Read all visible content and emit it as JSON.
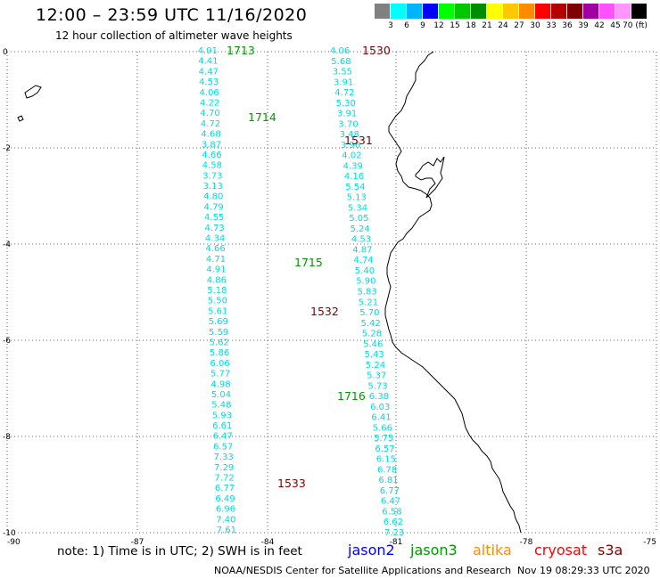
{
  "header": {
    "title": "12:00 – 23:59 UTC 11/16/2020",
    "subtitle": "12 hour collection of altimeter wave heights"
  },
  "scale": {
    "colors": [
      "#808080",
      "#00ffff",
      "#00b4ff",
      "#0000ff",
      "#00ff00",
      "#00c800",
      "#008c00",
      "#ffff00",
      "#ffc800",
      "#ff8c00",
      "#ff0000",
      "#b40000",
      "#800000",
      "#a000a0",
      "#ff50ff",
      "#ff96ff",
      "#000000"
    ],
    "labels": [
      "3",
      "6",
      "9",
      "12",
      "15",
      "18",
      "21",
      "24",
      "27",
      "30",
      "33",
      "36",
      "39",
      "42",
      "45",
      "70 (ft)"
    ]
  },
  "map": {
    "lon_range": [
      -90,
      -75
    ],
    "lat_range": [
      -10,
      0
    ],
    "x_ticks": [
      "-90",
      "-87",
      "-84",
      "-81",
      "-78",
      "-75"
    ],
    "y_ticks": [
      "0",
      "-2",
      "-4",
      "-6",
      "-8",
      "-10"
    ],
    "grid": true,
    "track_color": "#00dcdc",
    "jason3_color": "#009900",
    "s3a_color": "#800000",
    "track_a_values": [
      "4.91",
      "4.41",
      "4.47",
      "4.53",
      "4.06",
      "4.22",
      "4.70",
      "4.72",
      "4.68",
      "3.87",
      "4.66",
      "4.58",
      "3.73",
      "3.13",
      "4.80",
      "4.79",
      "4.55",
      "4.73",
      "4.34",
      "4.66",
      "4.71",
      "4.91",
      "4.86",
      "5.18",
      "5.50",
      "5.61",
      "5.69",
      "5.59",
      "5.62",
      "5.86",
      "6.06",
      "5.77",
      "4.98",
      "5.04",
      "5.48",
      "5.93",
      "6.61",
      "6.47",
      "6.57",
      "7.33",
      "7.29",
      "7.72",
      "6.77",
      "6.49",
      "6.96",
      "7.40",
      "7.61"
    ],
    "track_b_values": [
      "4.06",
      "5.68",
      "3.55",
      "3.91",
      "4.72",
      "5.30",
      "3.91",
      "3.70",
      "3.48",
      "3.96",
      "4.02",
      "4.39",
      "4.16",
      "5.54",
      "5.13",
      "5.34",
      "5.05",
      "5.24",
      "4.53",
      "4.87",
      "4.74",
      "5.40",
      "5.90",
      "5.83",
      "5.21",
      "5.70",
      "5.42",
      "5.28",
      "5.46",
      "5.43",
      "5.24",
      "5.37",
      "5.73",
      "6.38",
      "6.03",
      "6.41",
      "5.66",
      "5.75",
      "6.57",
      "6.15",
      "6.78",
      "6.81",
      "6.77",
      "6.47",
      "6.58",
      "6.62",
      "7.23"
    ],
    "time_labels": [
      {
        "text": "1713",
        "sat": "jason3"
      },
      {
        "text": "1714",
        "sat": "jason3"
      },
      {
        "text": "1715",
        "sat": "jason3"
      },
      {
        "text": "1716",
        "sat": "jason3"
      },
      {
        "text": "1530",
        "sat": "s3a"
      },
      {
        "text": "1531",
        "sat": "s3a"
      },
      {
        "text": "1532",
        "sat": "s3a"
      },
      {
        "text": "1533",
        "sat": "s3a"
      }
    ]
  },
  "footer": {
    "note": "note:  1) Time is in UTC;  2) SWH is in feet",
    "legend": [
      {
        "text": "jason2",
        "color": "#0000ff"
      },
      {
        "text": "jason3",
        "color": "#009900"
      },
      {
        "text": "altika",
        "color": "#ff8c00"
      },
      {
        "text": "cryosat",
        "color": "#ff0000"
      },
      {
        "text": "s3a",
        "color": "#800000"
      }
    ],
    "credit": "NOAA/NESDIS Center for Satellite Applications and Research",
    "timestamp": "Nov 19 08:29:33 UTC 2020"
  }
}
